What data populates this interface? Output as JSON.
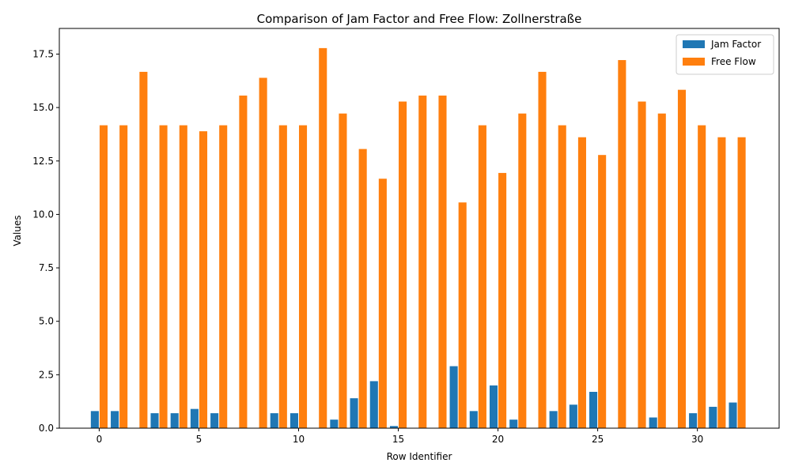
{
  "chart_data": {
    "type": "bar",
    "title": "Comparison of Jam Factor and Free Flow: Zollnerstraße",
    "xlabel": "Row Identifier",
    "ylabel": "Values",
    "x": [
      0,
      1,
      2,
      3,
      4,
      5,
      6,
      7,
      8,
      9,
      10,
      11,
      12,
      13,
      14,
      15,
      16,
      17,
      18,
      19,
      20,
      21,
      22,
      23,
      24,
      25,
      26,
      27,
      28,
      29,
      30,
      31,
      32
    ],
    "xticks": [
      "0",
      "5",
      "10",
      "15",
      "20",
      "25",
      "30"
    ],
    "xtick_values": [
      0,
      5,
      10,
      15,
      20,
      25,
      30
    ],
    "xlim": [
      -2.0,
      34.1
    ],
    "ylim": [
      0,
      18.7
    ],
    "yticks": [
      "0.0",
      "2.5",
      "5.0",
      "7.5",
      "10.0",
      "12.5",
      "15.0",
      "17.5"
    ],
    "ytick_values": [
      0,
      2.5,
      5,
      7.5,
      10,
      12.5,
      15,
      17.5
    ],
    "grid": false,
    "legend_position": "top-right",
    "series": [
      {
        "name": "Jam Factor",
        "color": "#1f77b4",
        "values": [
          0.8,
          0.8,
          0,
          0.7,
          0.7,
          0.9,
          0.7,
          0,
          0,
          0.7,
          0.7,
          0,
          0.4,
          1.4,
          2.2,
          0.1,
          0,
          0,
          2.9,
          0.8,
          2.0,
          0.4,
          0,
          0.8,
          1.1,
          1.7,
          0,
          0,
          0.5,
          0,
          0.7,
          1.0,
          1.2
        ]
      },
      {
        "name": "Free Flow",
        "color": "#ff7f0e",
        "values": [
          14.17,
          14.17,
          16.67,
          14.17,
          14.17,
          13.89,
          14.17,
          15.56,
          16.39,
          14.17,
          14.17,
          17.78,
          14.72,
          13.06,
          11.67,
          15.28,
          15.56,
          15.56,
          10.56,
          14.17,
          11.94,
          14.72,
          16.67,
          14.17,
          13.61,
          12.78,
          17.22,
          15.28,
          14.72,
          15.83,
          14.17,
          13.61,
          13.61
        ]
      }
    ]
  }
}
